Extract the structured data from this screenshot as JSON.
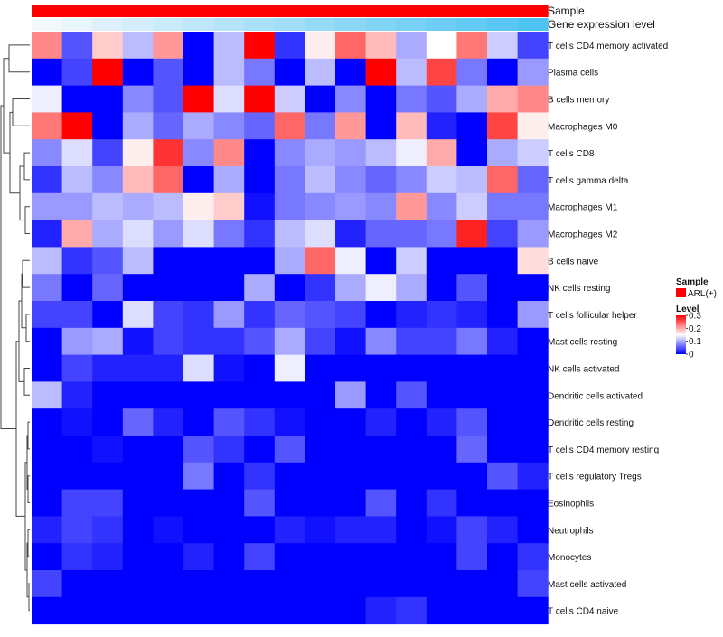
{
  "chart_data": {
    "type": "heatmap",
    "title": "",
    "annotation_tracks": [
      {
        "label": "Sample",
        "color_start": "#ff0000",
        "color_end": "#ff0000"
      },
      {
        "label": "Gene expression level",
        "color_start": "#f2f8fc",
        "color_end": "#4fc3f2"
      }
    ],
    "rows": [
      "T cells CD4 memory activated",
      "Plasma cells",
      "B cells memory",
      "Macrophages M0",
      "T cells CD8",
      "T cells gamma delta",
      "Macrophages M1",
      "Macrophages M2",
      "B cells naive",
      "NK cells resting",
      "T cells follicular helper",
      "Mast cells resting",
      "NK cells activated",
      "Dendritic cells activated",
      "Dendritic cells resting",
      "T cells CD4 memory resting",
      "T cells regulatory  Tregs",
      "Eosinophils",
      "Neutrophils",
      "Monocytes",
      "Mast cells activated",
      "T cells CD4 naive"
    ],
    "n_columns": 17,
    "values": [
      [
        0.22,
        0.05,
        0.18,
        0.11,
        0.21,
        0.0,
        0.11,
        0.3,
        0.03,
        0.16,
        0.24,
        0.19,
        0.1,
        0.15,
        0.23,
        0.12,
        0.04
      ],
      [
        0.0,
        0.04,
        0.3,
        0.0,
        0.05,
        0.0,
        0.11,
        0.07,
        0.0,
        0.11,
        0.0,
        0.3,
        0.11,
        0.26,
        0.07,
        0.0,
        0.09
      ],
      [
        0.14,
        0.0,
        0.0,
        0.08,
        0.05,
        0.3,
        0.13,
        0.3,
        0.12,
        0.0,
        0.08,
        0.0,
        0.07,
        0.05,
        0.1,
        0.2,
        0.22
      ],
      [
        0.23,
        0.3,
        0.0,
        0.1,
        0.06,
        0.1,
        0.08,
        0.06,
        0.24,
        0.07,
        0.21,
        0.0,
        0.19,
        0.02,
        0.0,
        0.26,
        0.16
      ],
      [
        0.08,
        0.13,
        0.04,
        0.16,
        0.27,
        0.08,
        0.22,
        0.0,
        0.08,
        0.1,
        0.09,
        0.11,
        0.14,
        0.2,
        0.0,
        0.1,
        0.12
      ],
      [
        0.03,
        0.11,
        0.08,
        0.19,
        0.24,
        0.0,
        0.1,
        0.0,
        0.07,
        0.11,
        0.08,
        0.06,
        0.08,
        0.12,
        0.11,
        0.24,
        0.06
      ],
      [
        0.09,
        0.09,
        0.11,
        0.1,
        0.11,
        0.16,
        0.18,
        0.01,
        0.07,
        0.08,
        0.09,
        0.08,
        0.21,
        0.08,
        0.12,
        0.07,
        0.07
      ],
      [
        0.02,
        0.2,
        0.1,
        0.13,
        0.09,
        0.13,
        0.07,
        0.03,
        0.11,
        0.13,
        0.02,
        0.06,
        0.06,
        0.07,
        0.28,
        0.04,
        0.09
      ],
      [
        0.11,
        0.03,
        0.05,
        0.11,
        0.0,
        0.0,
        0.0,
        0.0,
        0.1,
        0.24,
        0.14,
        0.0,
        0.12,
        0.0,
        0.0,
        0.0,
        0.17
      ],
      [
        0.07,
        0.0,
        0.06,
        0.0,
        0.0,
        0.0,
        0.0,
        0.1,
        0.0,
        0.03,
        0.1,
        0.14,
        0.1,
        0.0,
        0.05,
        0.0,
        0.0
      ],
      [
        0.04,
        0.04,
        0.0,
        0.13,
        0.04,
        0.03,
        0.09,
        0.03,
        0.06,
        0.05,
        0.04,
        0.0,
        0.02,
        0.03,
        0.02,
        0.0,
        0.09
      ],
      [
        0.0,
        0.09,
        0.1,
        0.01,
        0.04,
        0.03,
        0.03,
        0.05,
        0.1,
        0.04,
        0.01,
        0.08,
        0.04,
        0.04,
        0.07,
        0.02,
        0.0
      ],
      [
        0.0,
        0.04,
        0.02,
        0.02,
        0.02,
        0.13,
        0.01,
        0.0,
        0.14,
        0.0,
        0.0,
        0.0,
        0.0,
        0.0,
        0.0,
        0.0,
        0.0
      ],
      [
        0.11,
        0.02,
        0.0,
        0.0,
        0.0,
        0.0,
        0.0,
        0.0,
        0.0,
        0.0,
        0.09,
        0.0,
        0.05,
        0.0,
        0.0,
        0.0,
        0.0
      ],
      [
        0.0,
        0.01,
        0.0,
        0.06,
        0.02,
        0.0,
        0.05,
        0.03,
        0.01,
        0.0,
        0.0,
        0.02,
        0.0,
        0.02,
        0.05,
        0.0,
        0.0
      ],
      [
        0.0,
        0.0,
        0.01,
        0.0,
        0.0,
        0.05,
        0.03,
        0.0,
        0.05,
        0.0,
        0.0,
        0.0,
        0.0,
        0.0,
        0.06,
        0.0,
        0.0
      ],
      [
        0.0,
        0.0,
        0.0,
        0.0,
        0.0,
        0.07,
        0.0,
        0.03,
        0.0,
        0.0,
        0.0,
        0.0,
        0.0,
        0.0,
        0.0,
        0.05,
        0.02
      ],
      [
        0.0,
        0.04,
        0.04,
        0.0,
        0.0,
        0.0,
        0.0,
        0.05,
        0.0,
        0.0,
        0.0,
        0.05,
        0.0,
        0.03,
        0.0,
        0.0,
        0.0
      ],
      [
        0.02,
        0.04,
        0.03,
        0.0,
        0.01,
        0.0,
        0.0,
        0.0,
        0.02,
        0.01,
        0.02,
        0.02,
        0.0,
        0.01,
        0.04,
        0.02,
        0.0
      ],
      [
        0.0,
        0.03,
        0.02,
        0.0,
        0.0,
        0.02,
        0.0,
        0.04,
        0.0,
        0.0,
        0.0,
        0.0,
        0.0,
        0.0,
        0.04,
        0.0,
        0.03
      ],
      [
        0.04,
        0.0,
        0.0,
        0.0,
        0.0,
        0.0,
        0.0,
        0.0,
        0.0,
        0.0,
        0.0,
        0.0,
        0.0,
        0.0,
        0.0,
        0.0,
        0.04
      ],
      [
        0.0,
        0.0,
        0.0,
        0.0,
        0.0,
        0.0,
        0.0,
        0.0,
        0.0,
        0.0,
        0.0,
        0.02,
        0.03,
        0.0,
        0.0,
        0.0,
        0.0
      ]
    ],
    "color_scale": {
      "min": 0,
      "mid": 0.15,
      "max": 0.3,
      "low_color": "#0000ff",
      "mid_color": "#ffffff",
      "high_color": "#ff0000"
    },
    "legend": {
      "sample_title": "Sample",
      "sample_entry": "ARL(+)",
      "sample_color": "#ff0000",
      "level_title": "Level",
      "level_ticks": [
        "0.3",
        "0.2",
        "0.1",
        "0"
      ],
      "level_tick_values": [
        0.3,
        0.2,
        0.1,
        0
      ]
    },
    "dendrogram": "row clustering (left)"
  }
}
